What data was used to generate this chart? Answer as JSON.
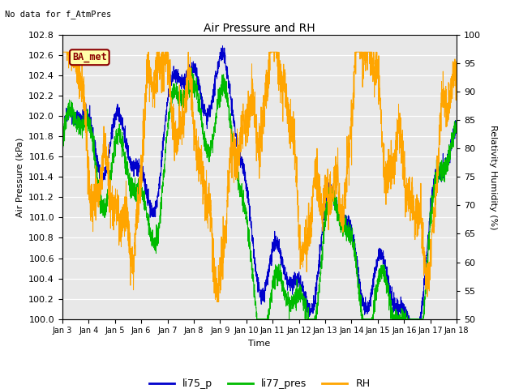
{
  "title": "Air Pressure and RH",
  "subtitle": "No data for f_AtmPres",
  "xlabel": "Time",
  "ylabel_left": "Air Pressure (kPa)",
  "ylabel_right": "Relativity Humidity (%)",
  "ylim_left": [
    100.0,
    102.8
  ],
  "ylim_right": [
    50,
    100
  ],
  "yticks_left": [
    100.0,
    100.2,
    100.4,
    100.6,
    100.8,
    101.0,
    101.2,
    101.4,
    101.6,
    101.8,
    102.0,
    102.2,
    102.4,
    102.6,
    102.8
  ],
  "yticks_right": [
    50,
    55,
    60,
    65,
    70,
    75,
    80,
    85,
    90,
    95,
    100
  ],
  "xtick_labels": [
    "Jan 3",
    "Jan 4",
    "Jan 5",
    "Jan 6",
    "Jan 7",
    "Jan 8",
    "Jan 9",
    "Jan 10",
    "Jan 11",
    "Jan 12",
    "Jan 13",
    "Jan 14",
    "Jan 15",
    "Jan 16",
    "Jan 17",
    "Jan 18"
  ],
  "color_li75": "#0000cc",
  "color_li77": "#00bb00",
  "color_rh": "#ffa500",
  "bg_color": "#ffffff",
  "plot_bg": "#e8e8e8",
  "station_label": "BA_met",
  "legend_entries": [
    "li75_p",
    "li77_pres",
    "RH"
  ]
}
